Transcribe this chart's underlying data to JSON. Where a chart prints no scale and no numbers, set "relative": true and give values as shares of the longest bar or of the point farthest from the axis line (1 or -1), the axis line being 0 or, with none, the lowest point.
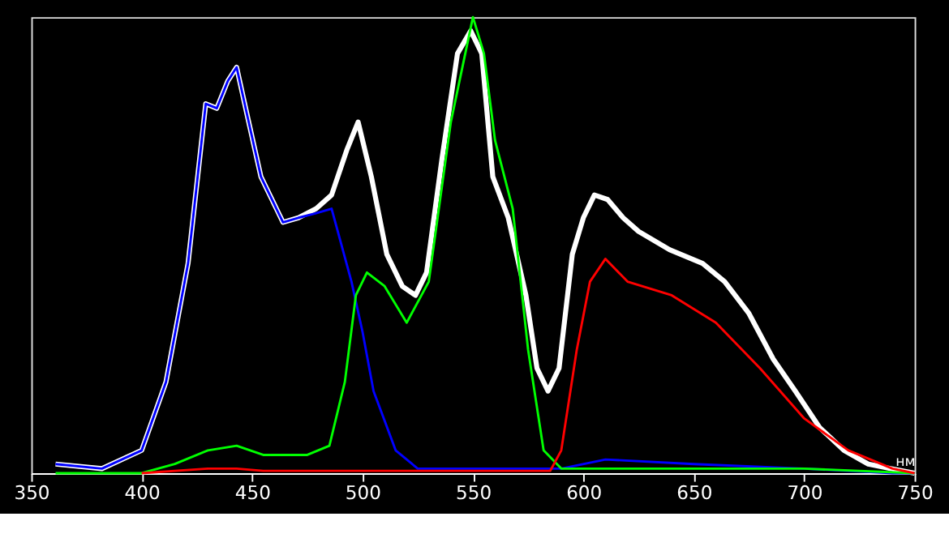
{
  "chart_data": {
    "type": "line",
    "relative": true,
    "xlabel": "нм",
    "xlim": [
      350,
      750
    ],
    "xticks": [
      350,
      400,
      450,
      500,
      550,
      600,
      650,
      700,
      750
    ],
    "grid": false,
    "marker": "none",
    "line_style": "solid",
    "series": [
      {
        "color": "#ffffff",
        "x": [
          361,
          382,
          400,
          411,
          421,
          429,
          434,
          439,
          443,
          448,
          454,
          461,
          464,
          471,
          479,
          486,
          493,
          498,
          504,
          511,
          518,
          524,
          529,
          536,
          543,
          549,
          554,
          559,
          566,
          574,
          579,
          584,
          589,
          595,
          600,
          605,
          611,
          618,
          625,
          639,
          654,
          664,
          675,
          686,
          696,
          707,
          718,
          729,
          739,
          750
        ],
        "values": [
          0.02,
          0.01,
          0.05,
          0.2,
          0.46,
          0.81,
          0.8,
          0.86,
          0.89,
          0.78,
          0.65,
          0.58,
          0.55,
          0.56,
          0.58,
          0.61,
          0.71,
          0.77,
          0.65,
          0.48,
          0.41,
          0.39,
          0.44,
          0.69,
          0.92,
          0.97,
          0.92,
          0.65,
          0.56,
          0.39,
          0.23,
          0.18,
          0.23,
          0.48,
          0.56,
          0.61,
          0.6,
          0.56,
          0.53,
          0.49,
          0.46,
          0.42,
          0.35,
          0.25,
          0.18,
          0.1,
          0.05,
          0.02,
          0.01,
          0
        ]
      },
      {
        "color": "#0000ff",
        "x": [
          361,
          382,
          400,
          411,
          421,
          429,
          434,
          439,
          443,
          448,
          454,
          461,
          464,
          471,
          479,
          486,
          495,
          500,
          505,
          515,
          525,
          560,
          590,
          610,
          650,
          700,
          740,
          750
        ],
        "values": [
          0.02,
          0.01,
          0.05,
          0.2,
          0.46,
          0.81,
          0.8,
          0.86,
          0.89,
          0.78,
          0.65,
          0.58,
          0.55,
          0.56,
          0.57,
          0.58,
          0.42,
          0.31,
          0.18,
          0.05,
          0.01,
          0.01,
          0.01,
          0.03,
          0.02,
          0.01,
          0,
          0
        ]
      },
      {
        "color": "#00ff00",
        "x": [
          361,
          400,
          415,
          430,
          443,
          455,
          475,
          485,
          492,
          497,
          502,
          510,
          520,
          530,
          540,
          550,
          555,
          560,
          568,
          575,
          582,
          590,
          620,
          700,
          750
        ],
        "values": [
          0,
          0,
          0.02,
          0.05,
          0.06,
          0.04,
          0.04,
          0.06,
          0.2,
          0.39,
          0.44,
          0.41,
          0.33,
          0.42,
          0.77,
          1.0,
          0.92,
          0.73,
          0.58,
          0.27,
          0.05,
          0.01,
          0.01,
          0.01,
          0
        ]
      },
      {
        "color": "#ff0000",
        "x": [
          400,
          430,
          443,
          455,
          500,
          585,
          590,
          597,
          603,
          610,
          620,
          640,
          660,
          680,
          700,
          720,
          740,
          750
        ],
        "values": [
          0,
          0.01,
          0.01,
          0.005,
          0.005,
          0.005,
          0.05,
          0.27,
          0.42,
          0.47,
          0.42,
          0.39,
          0.33,
          0.23,
          0.12,
          0.05,
          0.01,
          0
        ]
      }
    ]
  }
}
